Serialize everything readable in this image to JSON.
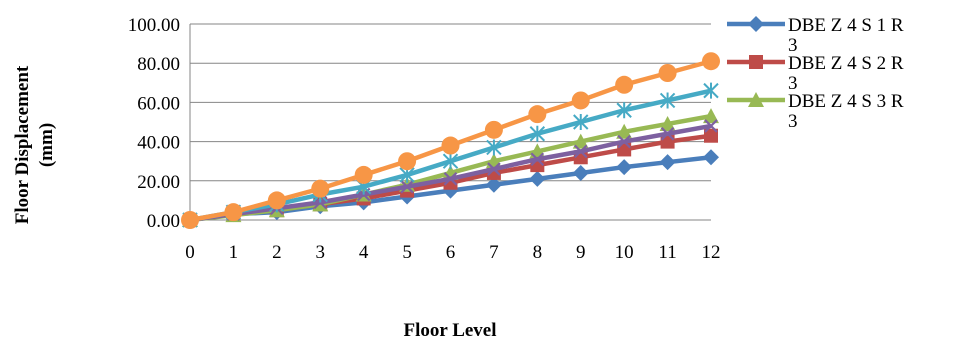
{
  "chart_data": {
    "type": "line",
    "title": "",
    "xlabel": "Floor Level",
    "ylabel": "Floor Displacement (mm)",
    "ylabel_lines": [
      "Floor Displacement",
      "(mm)"
    ],
    "xlim": [
      0,
      12
    ],
    "ylim": [
      0,
      100
    ],
    "x": [
      0,
      1,
      2,
      3,
      4,
      5,
      6,
      7,
      8,
      9,
      10,
      11,
      12
    ],
    "x_ticks": [
      "0",
      "1",
      "2",
      "3",
      "4",
      "5",
      "6",
      "7",
      "8",
      "9",
      "10",
      "11",
      "12"
    ],
    "y_ticks": [
      "0.00",
      "20.00",
      "40.00",
      "60.00",
      "80.00",
      "100.00"
    ],
    "grid": true,
    "legend_position": "right",
    "series": [
      {
        "name": "DBE Z 4 S 1 R 3",
        "legend_lines": [
          "DBE Z 4 S 1 R",
          "3"
        ],
        "color": "#4a7ebb",
        "marker": "diamond",
        "values": [
          0,
          3,
          4,
          7,
          9,
          12,
          15,
          18,
          21,
          24,
          27,
          29.5,
          32
        ]
      },
      {
        "name": "DBE Z 4 S 2 R 3",
        "legend_lines": [
          "DBE Z 4 S 2 R",
          "3"
        ],
        "color": "#be4b48",
        "marker": "square",
        "values": [
          0,
          3,
          5,
          8,
          11,
          15,
          19,
          24,
          28,
          32,
          36,
          40,
          43
        ]
      },
      {
        "name": "DBE Z 4 S 3 R 3",
        "legend_lines": [
          "DBE Z 4 S 3 R",
          "3"
        ],
        "color": "#98b954",
        "marker": "triangle",
        "values": [
          0,
          2.5,
          5,
          8,
          13,
          18,
          24,
          30,
          35,
          40,
          45,
          49,
          53
        ]
      },
      {
        "color": "#7d60a0",
        "marker": "x",
        "values": [
          0,
          3,
          6,
          9,
          13,
          17,
          21,
          26,
          31,
          35,
          40,
          44,
          48
        ]
      },
      {
        "color": "#46aac5",
        "marker": "star",
        "values": [
          0,
          4,
          8,
          13,
          17,
          23,
          30,
          37,
          44,
          50,
          56,
          61,
          66
        ]
      },
      {
        "color": "#f79646",
        "marker": "circle",
        "values": [
          0,
          4,
          10,
          16,
          23,
          30,
          38,
          46,
          54,
          61,
          69,
          75,
          81
        ]
      }
    ]
  }
}
